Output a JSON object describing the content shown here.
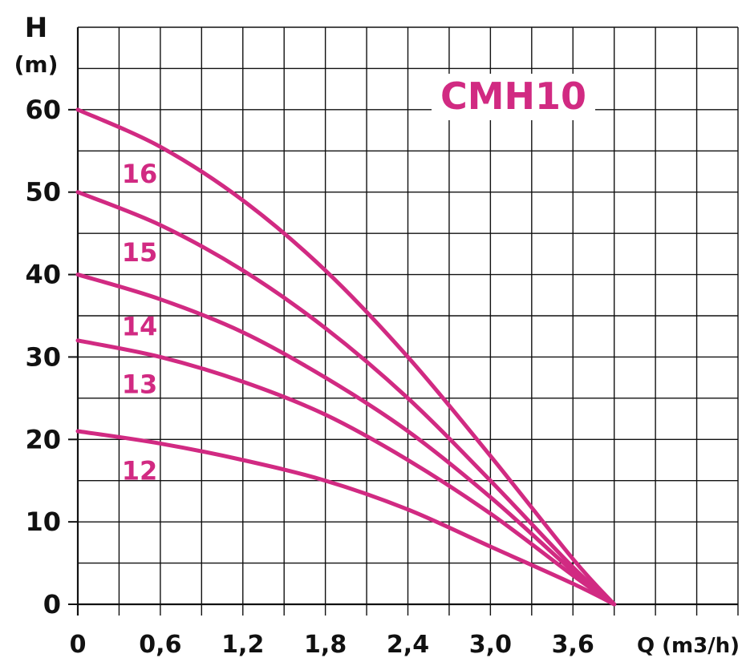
{
  "chart_data": {
    "type": "line",
    "title": "CMH10",
    "ylabel_line1": "H",
    "ylabel_line2": "(m)",
    "xlabel": "Q (m3/h)",
    "xlim": [
      0,
      4.8
    ],
    "ylim": [
      0,
      70
    ],
    "x_ticks": [
      0,
      0.6,
      1.2,
      1.8,
      2.4,
      3.0,
      3.6
    ],
    "x_tick_labels": [
      "0",
      "0,6",
      "1,2",
      "1,8",
      "2,4",
      "3,0",
      "3,6"
    ],
    "x_grid_step": 0.3,
    "y_ticks": [
      0,
      10,
      20,
      30,
      40,
      50,
      60
    ],
    "y_tick_labels": [
      "0",
      "10",
      "20",
      "30",
      "40",
      "50",
      "60"
    ],
    "y_grid_step": 5,
    "grid": true,
    "series": [
      {
        "name": "16",
        "x": [
          0,
          0.6,
          1.2,
          1.8,
          2.4,
          3.0,
          3.6,
          3.9
        ],
        "y": [
          60,
          55.5,
          49,
          40.5,
          30,
          18,
          5.5,
          0
        ]
      },
      {
        "name": "15",
        "x": [
          0,
          0.6,
          1.2,
          1.8,
          2.4,
          3.0,
          3.6,
          3.9
        ],
        "y": [
          50,
          46,
          40.5,
          33.5,
          25,
          15,
          4.5,
          0
        ]
      },
      {
        "name": "14",
        "x": [
          0,
          0.6,
          1.2,
          1.8,
          2.4,
          3.0,
          3.6,
          3.9
        ],
        "y": [
          40,
          37,
          33,
          27.5,
          21,
          13,
          4,
          0
        ]
      },
      {
        "name": "13",
        "x": [
          0,
          0.6,
          1.2,
          1.8,
          2.4,
          3.0,
          3.6,
          3.9
        ],
        "y": [
          32,
          30,
          27,
          23,
          17.5,
          11,
          3.5,
          0
        ]
      },
      {
        "name": "12",
        "x": [
          0,
          0.6,
          1.2,
          1.8,
          2.4,
          3.0,
          3.6,
          3.9
        ],
        "y": [
          21,
          19.5,
          17.5,
          15,
          11.5,
          7,
          2.5,
          0
        ]
      }
    ],
    "colors": {
      "curve": "#d12a82",
      "title": "#d12a82",
      "grid": "#111111",
      "text": "#111111"
    }
  }
}
